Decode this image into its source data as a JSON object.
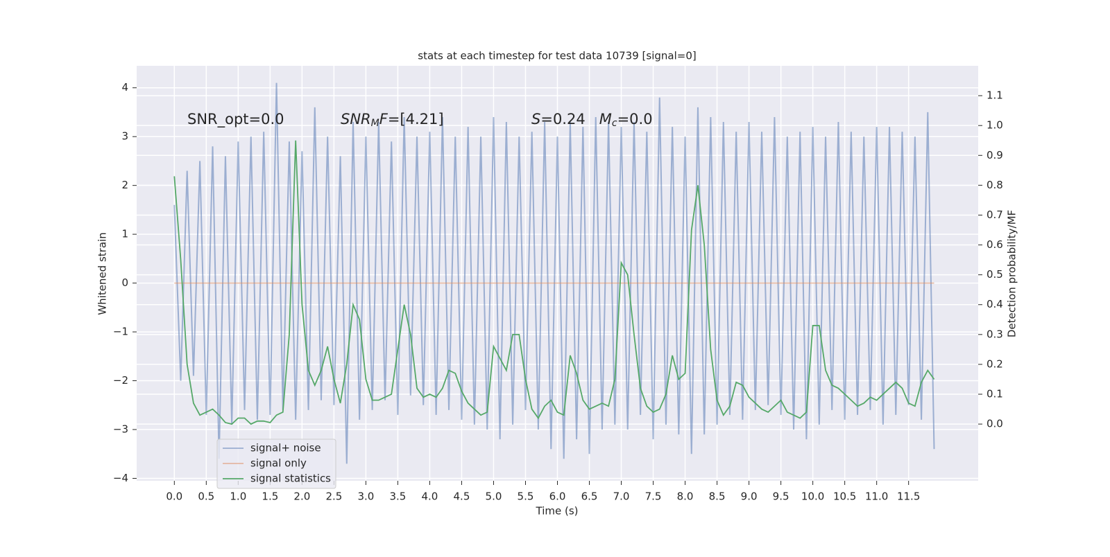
{
  "chart_data": {
    "type": "line",
    "title": "stats at each timestep for test data 10739 [signal=0]",
    "xlabel": "Time (s)",
    "ylabel": "Whitened strain",
    "y2label": "Detection probability/MF",
    "annotations": [
      [
        {
          "text": "SNR_opt=0.0",
          "style": "normal"
        }
      ],
      [
        {
          "text": "SNR",
          "style": "italic"
        },
        {
          "text": "M",
          "style": "italic-sub"
        },
        {
          "text": "F",
          "style": "italic"
        },
        {
          "text": "=[4.21]",
          "style": "normal"
        }
      ],
      [
        {
          "text": "S",
          "style": "italic"
        },
        {
          "text": "=0.24   ",
          "style": "normal"
        },
        {
          "text": "M",
          "style": "italic"
        },
        {
          "text": "c",
          "style": "italic-sub"
        },
        {
          "text": "=0.0",
          "style": "normal"
        }
      ]
    ],
    "x": [
      0.0,
      0.1,
      0.2,
      0.3,
      0.4,
      0.5,
      0.6,
      0.7,
      0.8,
      0.9,
      1.0,
      1.1,
      1.2,
      1.3,
      1.4,
      1.5,
      1.6,
      1.7,
      1.8,
      1.9,
      2.0,
      2.1,
      2.2,
      2.3,
      2.4,
      2.5,
      2.6,
      2.7,
      2.8,
      2.9,
      3.0,
      3.1,
      3.2,
      3.3,
      3.4,
      3.5,
      3.6,
      3.7,
      3.8,
      3.9,
      4.0,
      4.1,
      4.2,
      4.3,
      4.4,
      4.5,
      4.6,
      4.7,
      4.8,
      4.9,
      5.0,
      5.1,
      5.2,
      5.3,
      5.4,
      5.5,
      5.6,
      5.7,
      5.8,
      5.9,
      6.0,
      6.1,
      6.2,
      6.3,
      6.4,
      6.5,
      6.6,
      6.7,
      6.8,
      6.9,
      7.0,
      7.1,
      7.2,
      7.3,
      7.4,
      7.5,
      7.6,
      7.7,
      7.8,
      7.9,
      8.0,
      8.1,
      8.2,
      8.3,
      8.4,
      8.5,
      8.6,
      8.7,
      8.8,
      8.9,
      9.0,
      9.1,
      9.2,
      9.3,
      9.4,
      9.5,
      9.6,
      9.7,
      9.8,
      9.9,
      10.0,
      10.1,
      10.2,
      10.3,
      10.4,
      10.5,
      10.6,
      10.7,
      10.8,
      10.9,
      11.0,
      11.1,
      11.2,
      11.3,
      11.4,
      11.5,
      11.6,
      11.7,
      11.8,
      11.9
    ],
    "series": [
      {
        "name": "signal+ noise",
        "color": "#4c72b0",
        "values": [
          1.6,
          -2.0,
          2.3,
          -1.9,
          2.5,
          -2.7,
          2.8,
          -3.6,
          2.6,
          -2.9,
          2.9,
          -2.6,
          3.0,
          -2.8,
          3.1,
          -2.7,
          4.1,
          -2.6,
          2.9,
          -2.8,
          2.7,
          -2.6,
          3.6,
          -2.4,
          3.0,
          -2.5,
          2.6,
          -3.7,
          3.3,
          -2.8,
          3.0,
          -2.6,
          3.3,
          -2.4,
          2.9,
          -2.7,
          3.4,
          -2.3,
          3.0,
          -2.5,
          3.1,
          -2.7,
          3.4,
          -2.6,
          3.0,
          -2.8,
          3.2,
          -2.9,
          3.0,
          -3.0,
          3.4,
          -3.2,
          3.3,
          -2.9,
          3.0,
          -2.6,
          3.1,
          -3.0,
          3.3,
          -3.4,
          3.0,
          -3.6,
          3.3,
          -3.2,
          3.2,
          -3.5,
          3.4,
          -3.0,
          3.3,
          -2.9,
          3.2,
          -3.0,
          3.3,
          -2.7,
          3.1,
          -3.2,
          3.8,
          -2.9,
          3.2,
          -3.1,
          3.0,
          -3.5,
          3.6,
          -3.1,
          3.4,
          -2.9,
          3.3,
          -2.7,
          3.1,
          -2.8,
          3.3,
          -2.6,
          3.1,
          -2.5,
          3.4,
          -2.7,
          3.0,
          -3.0,
          3.1,
          -3.2,
          3.2,
          -2.9,
          3.0,
          -2.6,
          3.3,
          -2.8,
          3.1,
          -2.7,
          3.0,
          -2.6,
          3.2,
          -2.9,
          3.2,
          -2.7,
          3.1,
          -2.5,
          3.0,
          -2.8,
          3.5,
          -3.4
        ]
      },
      {
        "name": "signal only",
        "color": "#dd8452",
        "x": [
          0.0,
          11.9
        ],
        "values": [
          0,
          0
        ]
      },
      {
        "name": "signal statistics",
        "color": "#55a868",
        "axis": "y2",
        "values": [
          0.83,
          0.55,
          0.2,
          0.07,
          0.03,
          0.04,
          0.05,
          0.03,
          0.005,
          0.0,
          0.02,
          0.02,
          0.0,
          0.01,
          0.01,
          0.005,
          0.03,
          0.04,
          0.3,
          0.95,
          0.4,
          0.18,
          0.13,
          0.18,
          0.26,
          0.15,
          0.07,
          0.2,
          0.4,
          0.35,
          0.15,
          0.08,
          0.08,
          0.09,
          0.1,
          0.25,
          0.4,
          0.3,
          0.12,
          0.09,
          0.1,
          0.09,
          0.12,
          0.18,
          0.17,
          0.11,
          0.07,
          0.05,
          0.03,
          0.04,
          0.26,
          0.22,
          0.18,
          0.3,
          0.3,
          0.15,
          0.05,
          0.02,
          0.06,
          0.08,
          0.04,
          0.03,
          0.23,
          0.17,
          0.08,
          0.05,
          0.06,
          0.07,
          0.06,
          0.15,
          0.54,
          0.5,
          0.3,
          0.12,
          0.06,
          0.04,
          0.05,
          0.1,
          0.23,
          0.15,
          0.17,
          0.65,
          0.8,
          0.6,
          0.25,
          0.08,
          0.03,
          0.06,
          0.14,
          0.13,
          0.09,
          0.07,
          0.05,
          0.04,
          0.06,
          0.08,
          0.04,
          0.03,
          0.02,
          0.04,
          0.33,
          0.33,
          0.18,
          0.13,
          0.12,
          0.1,
          0.08,
          0.06,
          0.07,
          0.09,
          0.08,
          0.1,
          0.12,
          0.14,
          0.12,
          0.07,
          0.06,
          0.14,
          0.18,
          0.15
        ]
      }
    ],
    "xlim": [
      -0.59,
      12.59
    ],
    "xticks": [
      {
        "value": 0,
        "label": "0.0"
      },
      {
        "value": 0.5,
        "label": "0.5"
      },
      {
        "value": 1,
        "label": "1.0"
      },
      {
        "value": 1.5,
        "label": "1.5"
      },
      {
        "value": 2,
        "label": "2.0"
      },
      {
        "value": 2.5,
        "label": "2.5"
      },
      {
        "value": 3,
        "label": "3.0"
      },
      {
        "value": 3.5,
        "label": "3.5"
      },
      {
        "value": 4,
        "label": "4.0"
      },
      {
        "value": 4.5,
        "label": "4.5"
      },
      {
        "value": 5,
        "label": "5.0"
      },
      {
        "value": 5.5,
        "label": "5.5"
      },
      {
        "value": 6,
        "label": "6.0"
      },
      {
        "value": 6.5,
        "label": "6.5"
      },
      {
        "value": 7,
        "label": "7.0"
      },
      {
        "value": 7.5,
        "label": "7.5"
      },
      {
        "value": 8,
        "label": "8.0"
      },
      {
        "value": 8.5,
        "label": "8.5"
      },
      {
        "value": 9,
        "label": "9.0"
      },
      {
        "value": 9.5,
        "label": "9.5"
      },
      {
        "value": 10,
        "label": "10.0"
      },
      {
        "value": 10.5,
        "label": "10.5"
      },
      {
        "value": 11,
        "label": "11.0"
      },
      {
        "value": 11.5,
        "label": "11.5"
      }
    ],
    "ylim": [
      -4.05,
      4.45
    ],
    "yticks": [
      {
        "value": -4,
        "label": "−4"
      },
      {
        "value": -3,
        "label": "−3"
      },
      {
        "value": -2,
        "label": "−2"
      },
      {
        "value": -1,
        "label": "−1"
      },
      0,
      1,
      2,
      3,
      4
    ],
    "y2lim": [
      -0.19,
      1.2
    ],
    "y2ticks": [
      {
        "value": 0,
        "label": "0.0"
      },
      {
        "value": 0.1,
        "label": "0.1"
      },
      {
        "value": 0.2,
        "label": "0.2"
      },
      {
        "value": 0.3,
        "label": "0.3"
      },
      {
        "value": 0.4,
        "label": "0.4"
      },
      {
        "value": 0.5,
        "label": "0.5"
      },
      {
        "value": 0.6,
        "label": "0.6"
      },
      {
        "value": 0.7,
        "label": "0.7"
      },
      {
        "value": 0.8,
        "label": "0.8"
      },
      {
        "value": 0.9,
        "label": "0.9"
      },
      {
        "value": 1,
        "label": "1.0"
      },
      {
        "value": 1.1,
        "label": "1.1"
      }
    ],
    "grid": true,
    "legend": "lower left"
  }
}
